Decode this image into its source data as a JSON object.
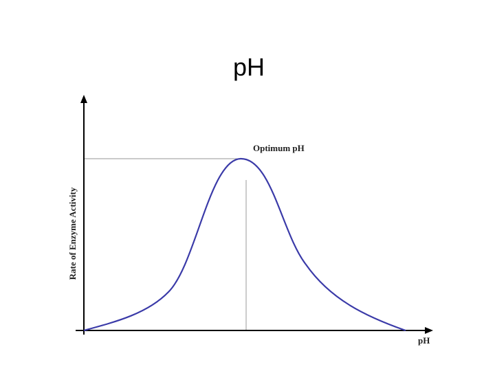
{
  "header": {
    "title": "pH"
  },
  "diagram": {
    "annotation": "Optimum pH",
    "y_label": "Rate of Enzyme Activity",
    "x_label": "pH"
  }
}
